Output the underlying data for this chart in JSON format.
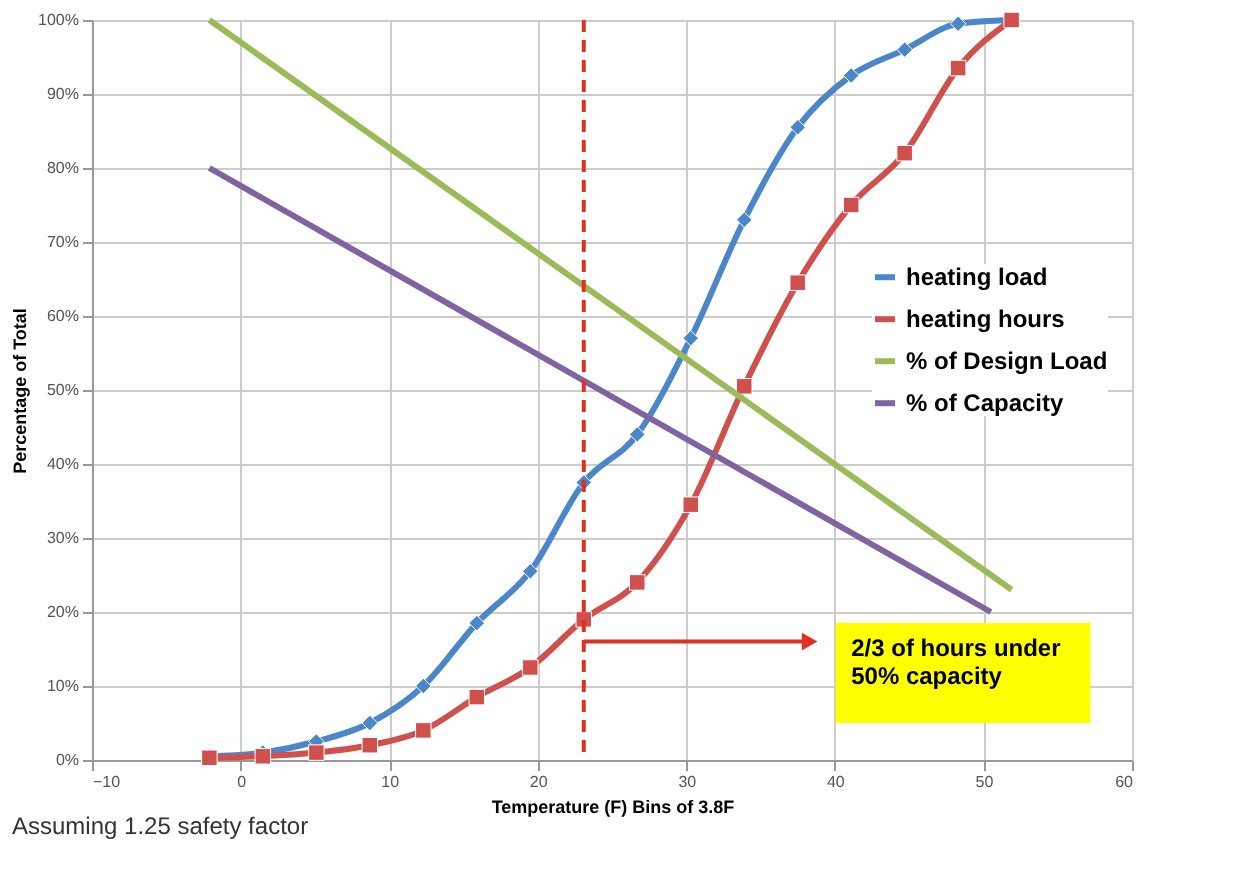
{
  "chart_data": {
    "type": "line",
    "xlabel": "Temperature (F) Bins of 3.8F",
    "ylabel": "Percentage of Total",
    "x": [
      -2.1,
      1.5,
      5.1,
      8.7,
      12.3,
      15.9,
      19.5,
      23.1,
      26.7,
      30.3,
      33.9,
      37.5,
      41.1,
      44.7,
      48.3,
      51.9
    ],
    "series": [
      {
        "name": "heating load",
        "color": "#4a86c8",
        "marker": "diamond",
        "values": [
          0.5,
          1,
          2.5,
          5,
          10,
          18.5,
          25.5,
          37.5,
          44,
          57,
          73,
          85.5,
          92.5,
          96,
          99.5,
          100
        ]
      },
      {
        "name": "heating hours",
        "color": "#d0504d",
        "marker": "square",
        "values": [
          0.3,
          0.5,
          1,
          2,
          4,
          8.5,
          12.5,
          19,
          24,
          34.5,
          50.5,
          64.5,
          75,
          82,
          93.5,
          100
        ]
      },
      {
        "name": "% of Design Load",
        "color": "#9bbb59",
        "marker": "none",
        "x": [
          -2.1,
          51.9
        ],
        "values": [
          100,
          23
        ]
      },
      {
        "name": "% of Capacity",
        "color": "#8064a2",
        "marker": "none",
        "x": [
          -2.1,
          50.5
        ],
        "values": [
          80,
          20
        ]
      }
    ],
    "xlim": [
      -10,
      60
    ],
    "xticks": [
      -10,
      0,
      10,
      20,
      30,
      40,
      50,
      60
    ],
    "ylim": [
      0,
      100
    ],
    "yticks": [
      {
        "value": 0,
        "label": "0%"
      },
      {
        "value": 10,
        "label": "10%"
      },
      {
        "value": 20,
        "label": "20%"
      },
      {
        "value": 30,
        "label": "30%"
      },
      {
        "value": 40,
        "label": "40%"
      },
      {
        "value": 50,
        "label": "50%"
      },
      {
        "value": 60,
        "label": "60%"
      },
      {
        "value": 70,
        "label": "70%"
      },
      {
        "value": 80,
        "label": "80%"
      },
      {
        "value": 90,
        "label": "90%"
      },
      {
        "value": 100,
        "label": "100%"
      }
    ],
    "ref_lines": [
      {
        "axis": "x",
        "value": 23.1,
        "color": "#e03020",
        "line_style": "dashed"
      }
    ],
    "annotations": [
      "2/3 of hours under\n50% capacity",
      "Assuming 1.25 safety factor"
    ],
    "grid": true,
    "legend": "right",
    "line_style": "solid"
  }
}
